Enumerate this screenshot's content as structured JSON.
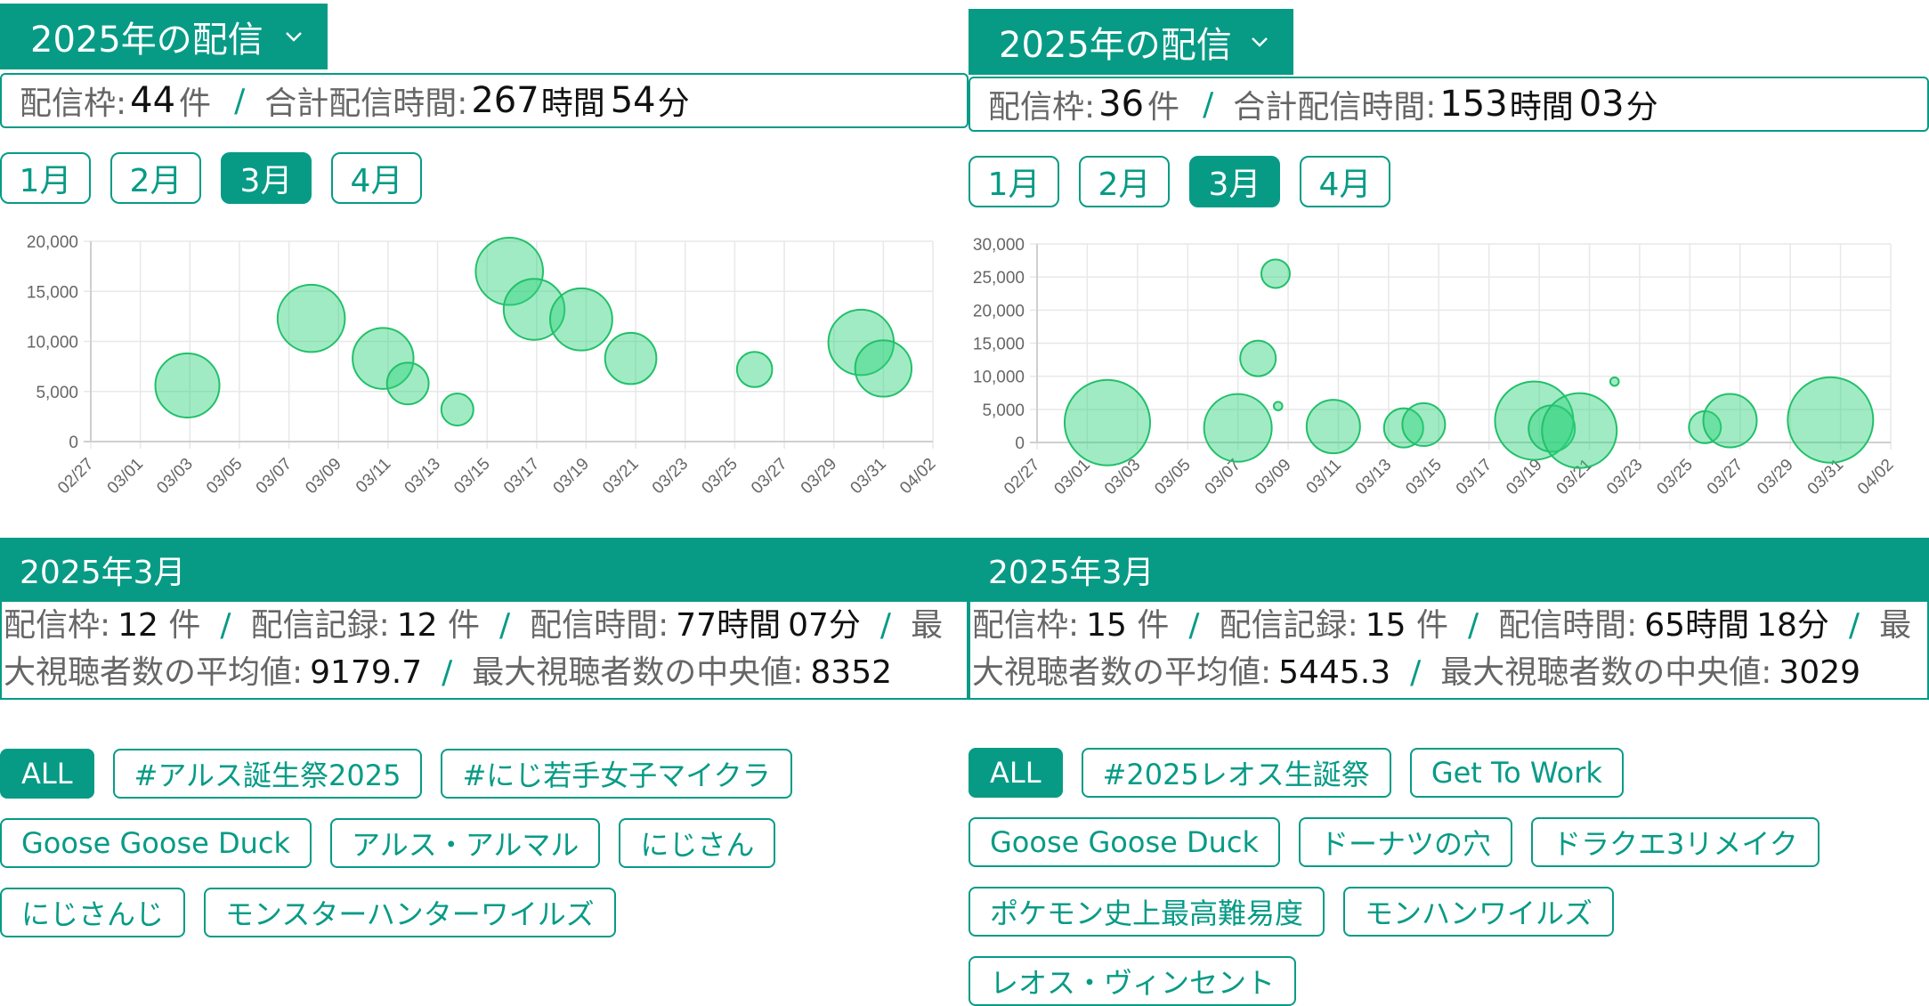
{
  "panels": [
    {
      "year_label": "2025年の配信",
      "summary": {
        "frames_label": "配信枠:",
        "frames_value": "44",
        "frames_unit": "件",
        "separator": "/",
        "total_label": "合計配信時間:",
        "hours_value": "267",
        "hours_unit": "時間",
        "minutes_value": "54",
        "minutes_unit": "分"
      },
      "months": [
        "1月",
        "2月",
        "3月",
        "4月"
      ],
      "active_month": "3月",
      "month_header": "2025年3月",
      "stats": {
        "frames_label": "配信枠:",
        "frames_value": "12",
        "frames_unit": "件",
        "records_label": "配信記録:",
        "records_value": "12",
        "records_unit": "件",
        "time_label": "配信時間:",
        "hours_value": "77",
        "hours_unit": "時間",
        "minutes_value": "07",
        "minutes_unit": "分",
        "avg_label": "最大視聴者数の平均値:",
        "avg_value": "9179.7",
        "median_label": "最大視聴者数の中央値:",
        "median_value": "8352",
        "separator": "/"
      },
      "tags": [
        "ALL",
        "#アルス誕生祭2025",
        "#にじ若手女子マイクラ",
        "Goose Goose Duck",
        "アルス・アルマル",
        "にじさん",
        "にじさんじ",
        "モンスターハンターワイルズ"
      ],
      "active_tag": "ALL"
    },
    {
      "year_label": "2025年の配信",
      "summary": {
        "frames_label": "配信枠:",
        "frames_value": "36",
        "frames_unit": "件",
        "separator": "/",
        "total_label": "合計配信時間:",
        "hours_value": "153",
        "hours_unit": "時間",
        "minutes_value": "03",
        "minutes_unit": "分"
      },
      "months": [
        "1月",
        "2月",
        "3月",
        "4月"
      ],
      "active_month": "3月",
      "month_header": "2025年3月",
      "stats": {
        "frames_label": "配信枠:",
        "frames_value": "15",
        "frames_unit": "件",
        "records_label": "配信記録:",
        "records_value": "15",
        "records_unit": "件",
        "time_label": "配信時間:",
        "hours_value": "65",
        "hours_unit": "時間",
        "minutes_value": "18",
        "minutes_unit": "分",
        "avg_label": "最大視聴者数の平均値:",
        "avg_value": "5445.3",
        "median_label": "最大視聴者数の中央値:",
        "median_value": "3029",
        "separator": "/"
      },
      "tags": [
        "ALL",
        "#2025レオス生誕祭",
        "Get To Work",
        "Goose Goose Duck",
        "ドーナツの穴",
        "ドラクエ3リメイク",
        "ポケモン史上最高難易度",
        "モンハンワイルズ",
        "レオス・ヴィンセント"
      ],
      "active_tag": "ALL"
    }
  ],
  "colors": {
    "accent": "#079b86",
    "bubble_fill": "#2fd37c",
    "bubble_stroke": "#22c06a"
  },
  "chart_data": [
    {
      "type": "scatter",
      "x_tick_labels": [
        "02/27",
        "03/01",
        "03/03",
        "03/05",
        "03/07",
        "03/09",
        "03/11",
        "03/13",
        "03/15",
        "03/17",
        "03/19",
        "03/21",
        "03/23",
        "03/25",
        "03/27",
        "03/29",
        "03/31",
        "04/02"
      ],
      "y_tick_labels": [
        "0",
        "5,000",
        "10,000",
        "15,000",
        "20,000"
      ],
      "ylim": [
        0,
        20000
      ],
      "xlim": [
        "2025-02-27",
        "2025-04-02"
      ],
      "grid": true,
      "points": [
        {
          "date": "2025-03-02.9",
          "y": 5600,
          "size": 1.0
        },
        {
          "date": "2025-03-07.9",
          "y": 12300,
          "size": 1.05
        },
        {
          "date": "2025-03-10.8",
          "y": 8300,
          "size": 0.95
        },
        {
          "date": "2025-03-11.8",
          "y": 5800,
          "size": 0.65
        },
        {
          "date": "2025-03-13.8",
          "y": 3200,
          "size": 0.5
        },
        {
          "date": "2025-03-15.9",
          "y": 17000,
          "size": 1.05
        },
        {
          "date": "2025-03-16.9",
          "y": 13200,
          "size": 0.95
        },
        {
          "date": "2025-03-18.8",
          "y": 12200,
          "size": 0.97
        },
        {
          "date": "2025-03-20.8",
          "y": 8300,
          "size": 0.8
        },
        {
          "date": "2025-03-25.8",
          "y": 7200,
          "size": 0.55
        },
        {
          "date": "2025-03-30.1",
          "y": 9900,
          "size": 1.02
        },
        {
          "date": "2025-03-31.0",
          "y": 7300,
          "size": 0.88
        }
      ]
    },
    {
      "type": "scatter",
      "x_tick_labels": [
        "02/27",
        "03/01",
        "03/03",
        "03/05",
        "03/07",
        "03/09",
        "03/11",
        "03/13",
        "03/15",
        "03/17",
        "03/19",
        "03/21",
        "03/23",
        "03/25",
        "03/27",
        "03/29",
        "03/31",
        "04/02"
      ],
      "y_tick_labels": [
        "0",
        "5,000",
        "10,000",
        "15,000",
        "20,000",
        "25,000",
        "30,000"
      ],
      "ylim": [
        0,
        30000
      ],
      "xlim": [
        "2025-02-27",
        "2025-04-02"
      ],
      "grid": true,
      "points": [
        {
          "date": "2025-03-01.8",
          "y": 3000,
          "size": 1.2
        },
        {
          "date": "2025-03-07.0",
          "y": 2200,
          "size": 0.95
        },
        {
          "date": "2025-03-07.8",
          "y": 12700,
          "size": 0.5
        },
        {
          "date": "2025-03-08.5",
          "y": 25500,
          "size": 0.4
        },
        {
          "date": "2025-03-08.6",
          "y": 5500,
          "size": 0.12
        },
        {
          "date": "2025-03-10.8",
          "y": 2400,
          "size": 0.75
        },
        {
          "date": "2025-03-13.6",
          "y": 2200,
          "size": 0.55
        },
        {
          "date": "2025-03-14.4",
          "y": 2700,
          "size": 0.6
        },
        {
          "date": "2025-03-18.8",
          "y": 3300,
          "size": 1.1
        },
        {
          "date": "2025-03-19.5",
          "y": 2100,
          "size": 0.65
        },
        {
          "date": "2025-03-20.6",
          "y": 1800,
          "size": 1.05
        },
        {
          "date": "2025-03-22.0",
          "y": 9200,
          "size": 0.12
        },
        {
          "date": "2025-03-25.6",
          "y": 2300,
          "size": 0.45
        },
        {
          "date": "2025-03-26.6",
          "y": 3300,
          "size": 0.75
        },
        {
          "date": "2025-03-30.6",
          "y": 3400,
          "size": 1.2
        }
      ]
    }
  ]
}
